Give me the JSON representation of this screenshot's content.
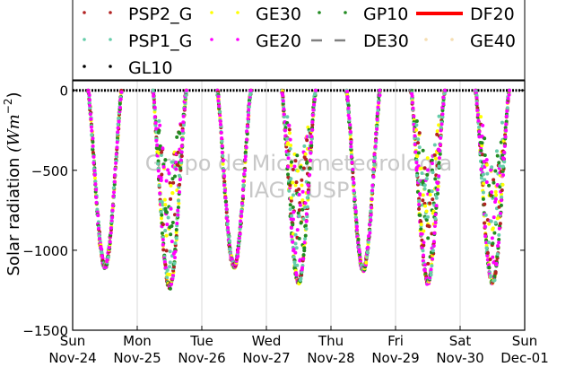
{
  "chart_data": {
    "type": "scatter",
    "title": "",
    "xlabel": "",
    "ylabel": "Solar radiation (Wm^-2)",
    "ylabel_main": "Solar radiation",
    "ylabel_unit": "(Wm",
    "ylabel_exp": "−2",
    "ylabel_close": ")",
    "ylim": [
      -1500,
      60
    ],
    "yticks": [
      0,
      -500,
      -1000,
      -1500
    ],
    "ytick_labels": [
      "0",
      "−500",
      "−1000",
      "−1500"
    ],
    "xlim": [
      0,
      7
    ],
    "xticks": [
      {
        "x": 0,
        "line1": "Sun",
        "line2": "Nov-24"
      },
      {
        "x": 1,
        "line1": "Mon",
        "line2": "Nov-25"
      },
      {
        "x": 2,
        "line1": "Tue",
        "line2": "Nov-26"
      },
      {
        "x": 3,
        "line1": "Wed",
        "line2": "Nov-27"
      },
      {
        "x": 4,
        "line1": "Thu",
        "line2": "Nov-28"
      },
      {
        "x": 5,
        "line1": "Fri",
        "line2": "Nov-29"
      },
      {
        "x": 6,
        "line1": "Sat",
        "line2": "Nov-30"
      },
      {
        "x": 7,
        "line1": "Sun",
        "line2": "Dec-01"
      }
    ],
    "grid": "vertical",
    "legend_position": "top",
    "watermark": [
      "Grupo de Micrometeorologia",
      "IAG - USP"
    ],
    "series": [
      {
        "name": "PSP2_G",
        "color": "#b22222",
        "marker": "dot"
      },
      {
        "name": "GE30",
        "color": "#ffff00",
        "marker": "dot"
      },
      {
        "name": "GP10",
        "color": "#228b22",
        "marker": "dot"
      },
      {
        "name": "DF20",
        "color": "#ff0000",
        "marker": "line"
      },
      {
        "name": "PSP1_G",
        "color": "#66cdaa",
        "marker": "dot"
      },
      {
        "name": "GE20",
        "color": "#ff00ff",
        "marker": "dot"
      },
      {
        "name": "DE30",
        "color": "#808080",
        "marker": "dash"
      },
      {
        "name": "GE40",
        "color": "#f5deb3",
        "marker": "dot"
      },
      {
        "name": "GL10",
        "color": "#000000",
        "marker": "dot"
      }
    ],
    "daily_peak": [
      {
        "day": "Nov-24",
        "peak": -1100,
        "noon": 0.53
      },
      {
        "day": "Nov-25",
        "peak": -1230,
        "noon": 1.48
      },
      {
        "day": "Nov-26",
        "peak": -1100,
        "noon": 2.5
      },
      {
        "day": "Nov-27",
        "peak": -1200,
        "noon": 3.5
      },
      {
        "day": "Nov-28",
        "peak": -1120,
        "noon": 4.5
      },
      {
        "day": "Nov-29",
        "peak": -1200,
        "noon": 5.5
      },
      {
        "day": "Nov-30",
        "peak": -1200,
        "noon": 6.47
      }
    ],
    "sunrise_offset": 0.24,
    "sunset_offset": 0.76
  }
}
